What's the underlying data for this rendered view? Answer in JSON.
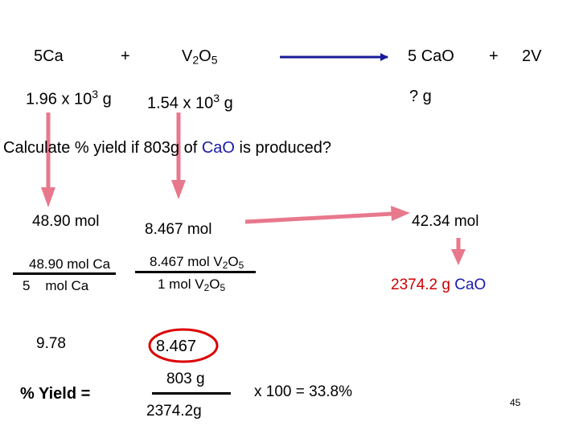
{
  "equation": {
    "reactant1": "5Ca",
    "plus1": "+",
    "reactant2": "V",
    "reactant2_sub1": "2",
    "reactant2_mid": "O",
    "reactant2_sub2": "5",
    "product1_coef": "5 ",
    "product1": "CaO",
    "plus2": "+",
    "product2": "2V"
  },
  "given": {
    "ca_mass_base": "1.96 x 10",
    "ca_mass_exp": "3",
    "ca_mass_unit": " g",
    "v2o5_mass_base": "1.54 x 10",
    "v2o5_mass_exp": "3",
    "v2o5_mass_unit": " g",
    "cao_unknown": "? g"
  },
  "question": {
    "prefix": "Calculate % yield  if  803g of ",
    "highlight": "CaO",
    "suffix": " is produced?"
  },
  "moles": {
    "ca_mol": "48.90 mol",
    "v2o5_mol": "8.467 mol",
    "cao_mol": "42.34 mol"
  },
  "ratios": {
    "ca_num": "48.90 mol Ca",
    "ca_den": "5    mol Ca",
    "v_num_a": "8.467 mol V",
    "v_num_sub1": "2",
    "v_num_b": "O",
    "v_num_sub2": "5",
    "v_den_a": "1 mol V",
    "v_den_sub1": "2",
    "v_den_b": "O",
    "v_den_sub2": "5",
    "cao_mass_value": "2374.2 g ",
    "cao_mass_label": "CaO"
  },
  "results": {
    "ca_result": "9.78",
    "v_result": "8.467"
  },
  "yield": {
    "label": "% Yield =",
    "numerator": "803 g",
    "denominator": "2374.2g",
    "times": "x 100 =  33.8%"
  },
  "page_number": "45",
  "colors": {
    "arrow_pink": "#e8788c",
    "arrow_blue": "#1a1a9a",
    "highlight_blue": "#1a1aaa",
    "circle_red": "#dd0000"
  }
}
